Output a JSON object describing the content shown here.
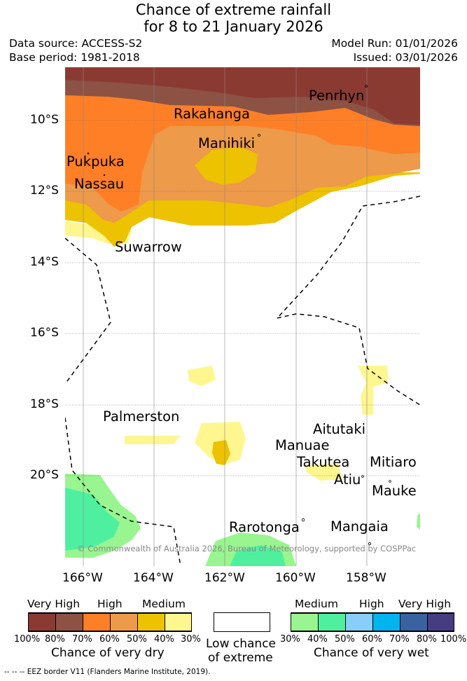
{
  "title": {
    "line1": "Chance of extreme rainfall",
    "line2": "for 8 to 21 January 2026"
  },
  "meta": {
    "data_source": "Data source: ACCESS-S2",
    "base_period": "Base period: 1981-2018",
    "model_run": "Model Run: 01/01/2026",
    "issued": "Issued: 03/01/2026"
  },
  "map": {
    "lat_labels": [
      "10°S",
      "12°S",
      "14°S",
      "16°S",
      "18°S",
      "20°S"
    ],
    "lon_labels": [
      "166°W",
      "164°W",
      "162°W",
      "160°W",
      "158°W"
    ],
    "places": {
      "penrhyn": "Penrhyn",
      "rakahanga": "Rakahanga",
      "manihiki": "Manihiki",
      "pukpuka": "Pukpuka",
      "nassau": "Nassau",
      "suwarrow": "Suwarrow",
      "palmerston": "Palmerston",
      "aitutaki": "Aitutaki",
      "manuae": "Manuae",
      "takutea": "Takutea",
      "mitiaro": "Mitiaro",
      "atiu": "Atiu",
      "mauke": "Mauke",
      "rarotonga": "Rarotonga",
      "mangaia": "Mangaia"
    },
    "copyright": "© Commonwealth of Australia 2026, Bureau of Meteorology, supported by COSPPac",
    "colors": {
      "very_high_dry_100_80": "#8b3a32",
      "very_high_dry_80_70": "#8c5244",
      "high_dry_70_60": "#ff7f27",
      "high_dry_60_50": "#ed9a4a",
      "medium_dry_50_40": "#edc200",
      "medium_dry_40_30": "#fff68f",
      "medium_wet_30_40": "#99f58f",
      "medium_wet_40_50": "#4ef0a0",
      "high_wet_50_60": "#87cefa",
      "high_wet_60_70": "#00b4f0",
      "very_high_wet_70_80": "#3a62a0",
      "very_high_wet_80_100": "#463c82"
    }
  },
  "legend": {
    "dry": {
      "cat_very_high": "Very High",
      "cat_high": "High",
      "cat_medium": "Medium",
      "ticks": [
        "100%",
        "80%",
        "70%",
        "60%",
        "50%",
        "40%",
        "30%"
      ],
      "caption": "Chance of very dry"
    },
    "low": {
      "line1": "Low chance",
      "line2": "of extreme"
    },
    "wet": {
      "cat_medium": "Medium",
      "cat_high": "High",
      "cat_very_high": "Very High",
      "ticks": [
        "30%",
        "40%",
        "50%",
        "60%",
        "70%",
        "80%",
        "100%"
      ],
      "caption": "Chance of very wet"
    },
    "eez_note": "--  --  -- EEZ border V11 (Flanders Marine Institute, 2019)."
  }
}
